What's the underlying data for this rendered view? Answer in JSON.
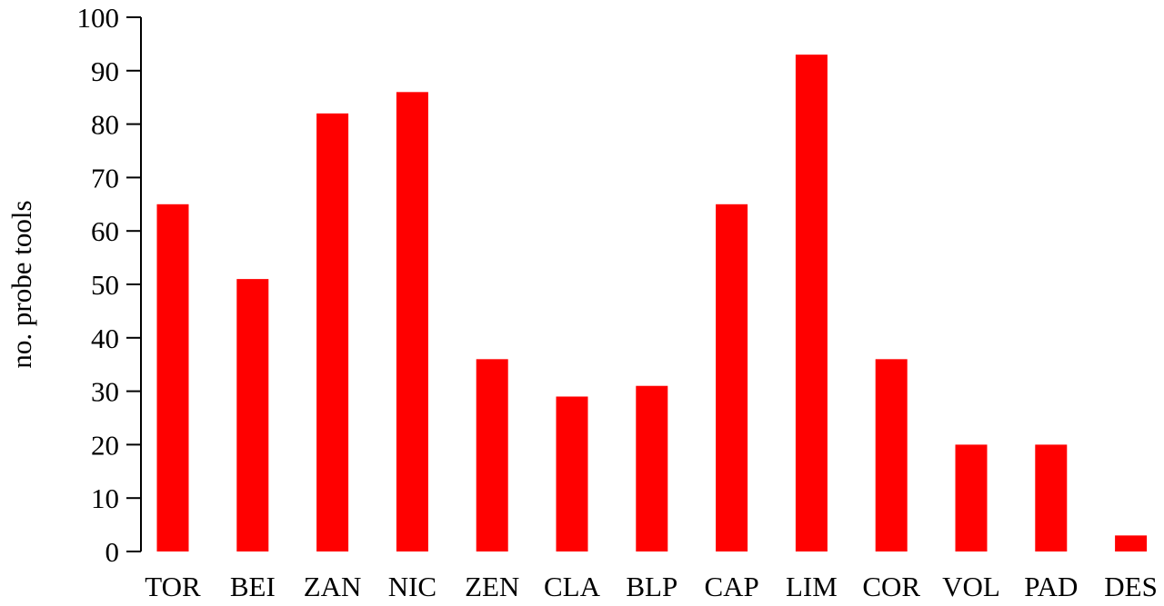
{
  "chart_data": {
    "type": "bar",
    "categories": [
      "TOR",
      "BEI",
      "ZAN",
      "NIC",
      "ZEN",
      "CLA",
      "BLP",
      "CAP",
      "LIM",
      "COR",
      "VOL",
      "PAD",
      "DES"
    ],
    "values": [
      65,
      51,
      82,
      86,
      36,
      29,
      31,
      65,
      93,
      36,
      20,
      20,
      3
    ],
    "ylabel": "no. probe tools",
    "ylim": [
      0,
      100
    ],
    "yticks": [
      0,
      10,
      20,
      30,
      40,
      50,
      60,
      70,
      80,
      90,
      100
    ],
    "bar_color": "#ff0000",
    "grid": false
  }
}
